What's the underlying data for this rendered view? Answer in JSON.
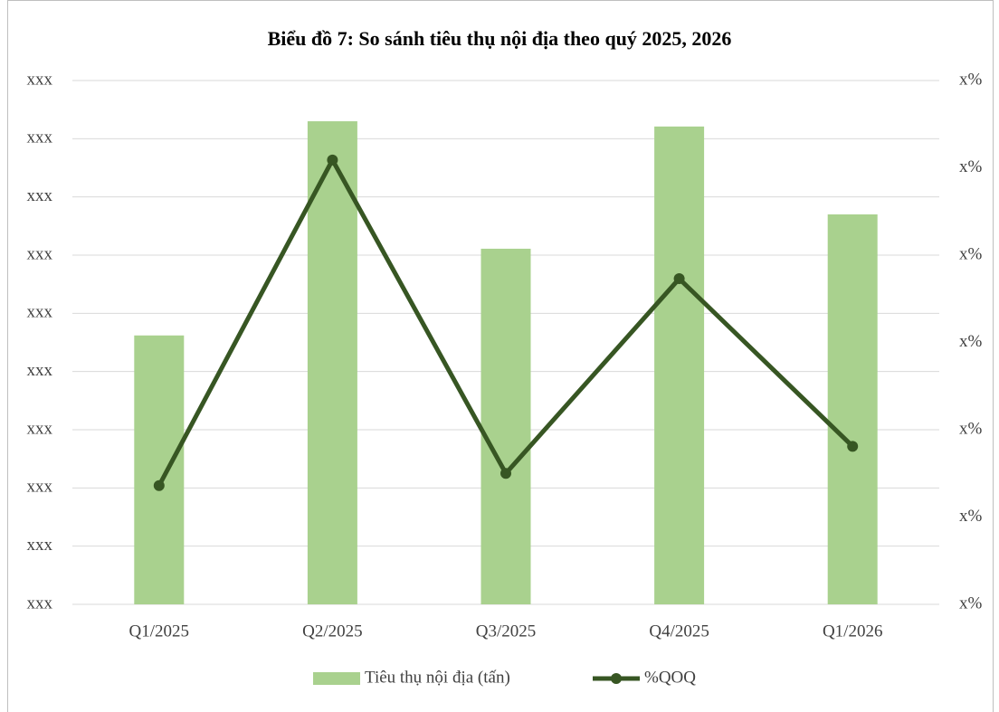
{
  "chart_data": {
    "type": "bar-line",
    "title": "Biểu đồ 7: So sánh tiêu thụ nội địa theo quý 2025, 2026",
    "categories": [
      "Q1/2025",
      "Q2/2025",
      "Q3/2025",
      "Q4/2025",
      "Q1/2026"
    ],
    "series": [
      {
        "name": "Tiêu thụ nội địa (tấn)",
        "type": "bar",
        "color": "#a9d18e",
        "values": [
          4.62,
          8.3,
          6.11,
          8.21,
          6.7
        ]
      },
      {
        "name": "%QOQ",
        "type": "line",
        "axis": "y2",
        "color": "#375623",
        "values": [
          1.36,
          5.09,
          1.5,
          3.73,
          1.81
        ]
      }
    ],
    "ylim": [
      0,
      9
    ],
    "yticks": [
      {
        "value": 0,
        "label": "xxx"
      },
      {
        "value": 1,
        "label": "xxx"
      },
      {
        "value": 2,
        "label": "xxx"
      },
      {
        "value": 3,
        "label": "xxx"
      },
      {
        "value": 4,
        "label": "xxx"
      },
      {
        "value": 5,
        "label": "xxx"
      },
      {
        "value": 6,
        "label": "xxx"
      },
      {
        "value": 7,
        "label": "xxx"
      },
      {
        "value": 8,
        "label": "xxx"
      },
      {
        "value": 9,
        "label": "xxx"
      }
    ],
    "y2lim": [
      0,
      6
    ],
    "y2ticks": [
      {
        "value": 0,
        "label": "x%"
      },
      {
        "value": 1,
        "label": "x%"
      },
      {
        "value": 2,
        "label": "x%"
      },
      {
        "value": 3,
        "label": "x%"
      },
      {
        "value": 4,
        "label": "x%"
      },
      {
        "value": 5,
        "label": "x%"
      },
      {
        "value": 6,
        "label": "x%"
      }
    ],
    "grid": true,
    "legend": "bottom"
  }
}
